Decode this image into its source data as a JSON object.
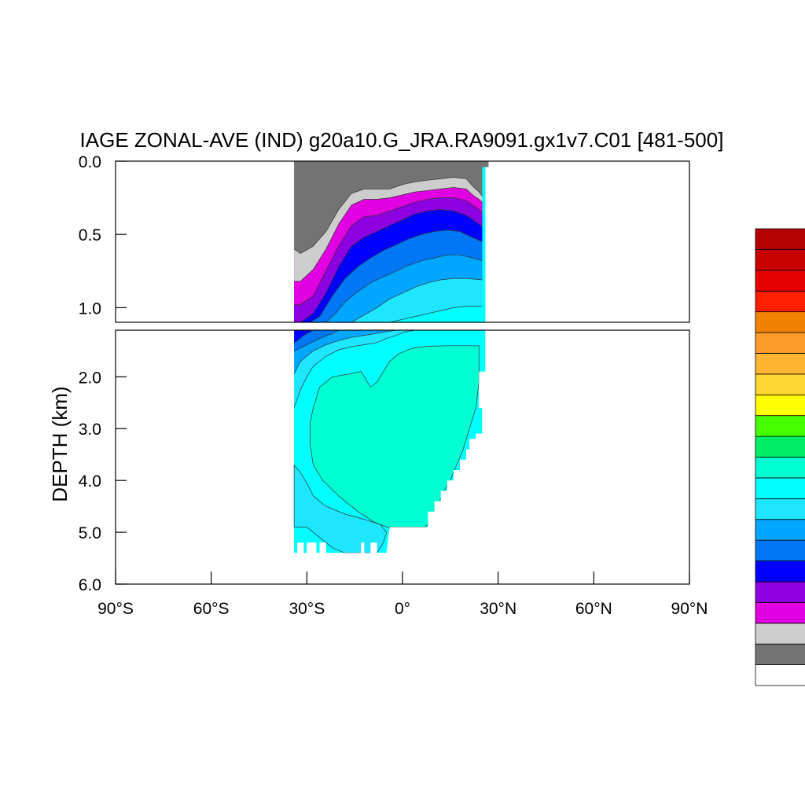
{
  "chart_data": {
    "type": "heatmap",
    "title": "IAGE ZONAL-AVE (IND) g20a10.G_JRA.RA9091.gx1v7.C01 [481-500]",
    "ylabel": "DEPTH (km)",
    "xlabel": "",
    "xlim": [
      -90,
      90
    ],
    "x_ticks": [
      {
        "value": -90,
        "label": "90°S"
      },
      {
        "value": -60,
        "label": "60°S"
      },
      {
        "value": -30,
        "label": "30°S"
      },
      {
        "value": 0,
        "label": "0°"
      },
      {
        "value": 30,
        "label": "30°N"
      },
      {
        "value": 60,
        "label": "60°N"
      },
      {
        "value": 90,
        "label": "90°N"
      }
    ],
    "top_panel": {
      "ylim": [
        0.0,
        1.1
      ],
      "y_ticks": [
        {
          "value": 0.0,
          "label": "0.0"
        },
        {
          "value": 0.5,
          "label": "0.5"
        },
        {
          "value": 1.0,
          "label": "1.0"
        }
      ]
    },
    "bottom_panel": {
      "ylim": [
        1.1,
        6.0
      ],
      "y_ticks": [
        {
          "value": 2.0,
          "label": "2.0"
        },
        {
          "value": 3.0,
          "label": "3.0"
        },
        {
          "value": 4.0,
          "label": "4.0"
        },
        {
          "value": 5.0,
          "label": "5.0"
        },
        {
          "value": 6.0,
          "label": "6.0"
        }
      ]
    },
    "colorbar": {
      "colors_bottom_to_top": [
        "#ffffff",
        "#737373",
        "#cdcdcd",
        "#e100e1",
        "#8c00e1",
        "#0000ff",
        "#0077f5",
        "#00a6ff",
        "#1ee6ff",
        "#00ffff",
        "#00ffd2",
        "#00ee64",
        "#46ff00",
        "#ffff00",
        "#ffd732",
        "#ffb432",
        "#ff9b28",
        "#f08200",
        "#ff1e00",
        "#e60000",
        "#c80000",
        "#b40000"
      ],
      "labels": []
    },
    "contour_levels": 9,
    "data_extent": {
      "lat_range": [
        -34,
        26
      ],
      "depth_top_km": 0.0,
      "max_depth_km": 5.4
    },
    "bands_top_panel": [
      {
        "color": "#737373",
        "lower": [
          [
            -34,
            0.6
          ],
          [
            -32,
            0.63
          ],
          [
            -28,
            0.58
          ],
          [
            -24,
            0.48
          ],
          [
            -20,
            0.33
          ],
          [
            -16,
            0.22
          ],
          [
            -12,
            0.19
          ],
          [
            -8,
            0.19
          ],
          [
            -4,
            0.19
          ],
          [
            0,
            0.16
          ],
          [
            4,
            0.14
          ],
          [
            8,
            0.13
          ],
          [
            12,
            0.12
          ],
          [
            16,
            0.11
          ],
          [
            20,
            0.12
          ],
          [
            22,
            0.17
          ],
          [
            24,
            0.21
          ],
          [
            25,
            0.24
          ]
        ]
      },
      {
        "color": "#cdcdcd",
        "lower": [
          [
            -34,
            0.82
          ],
          [
            -32,
            0.82
          ],
          [
            -28,
            0.74
          ],
          [
            -24,
            0.6
          ],
          [
            -20,
            0.43
          ],
          [
            -16,
            0.3
          ],
          [
            -12,
            0.26
          ],
          [
            -8,
            0.26
          ],
          [
            -4,
            0.25
          ],
          [
            0,
            0.23
          ],
          [
            4,
            0.21
          ],
          [
            8,
            0.2
          ],
          [
            12,
            0.19
          ],
          [
            16,
            0.18
          ],
          [
            20,
            0.19
          ],
          [
            22,
            0.23
          ],
          [
            24,
            0.26
          ],
          [
            25,
            0.28
          ]
        ]
      },
      {
        "color": "#e100e1",
        "lower": [
          [
            -34,
            0.98
          ],
          [
            -32,
            0.98
          ],
          [
            -28,
            0.92
          ],
          [
            -24,
            0.75
          ],
          [
            -20,
            0.58
          ],
          [
            -16,
            0.44
          ],
          [
            -12,
            0.38
          ],
          [
            -8,
            0.37
          ],
          [
            -4,
            0.34
          ],
          [
            0,
            0.31
          ],
          [
            4,
            0.28
          ],
          [
            8,
            0.26
          ],
          [
            12,
            0.25
          ],
          [
            16,
            0.25
          ],
          [
            20,
            0.27
          ],
          [
            22,
            0.3
          ],
          [
            24,
            0.33
          ],
          [
            25,
            0.35
          ]
        ]
      },
      {
        "color": "#8c00e1",
        "lower": [
          [
            -34,
            1.1
          ],
          [
            -32,
            1.1
          ],
          [
            -28,
            1.04
          ],
          [
            -24,
            0.9
          ],
          [
            -20,
            0.72
          ],
          [
            -16,
            0.58
          ],
          [
            -12,
            0.52
          ],
          [
            -8,
            0.48
          ],
          [
            -4,
            0.44
          ],
          [
            0,
            0.4
          ],
          [
            4,
            0.36
          ],
          [
            8,
            0.34
          ],
          [
            12,
            0.33
          ],
          [
            16,
            0.34
          ],
          [
            20,
            0.37
          ],
          [
            22,
            0.4
          ],
          [
            24,
            0.43
          ],
          [
            25,
            0.45
          ]
        ]
      },
      {
        "color": "#0000ff",
        "lower": [
          [
            -34,
            1.1
          ],
          [
            -29,
            1.1
          ],
          [
            -26,
            1.06
          ],
          [
            -22,
            0.92
          ],
          [
            -18,
            0.8
          ],
          [
            -14,
            0.72
          ],
          [
            -10,
            0.66
          ],
          [
            -6,
            0.61
          ],
          [
            -2,
            0.57
          ],
          [
            2,
            0.53
          ],
          [
            6,
            0.5
          ],
          [
            10,
            0.48
          ],
          [
            14,
            0.47
          ],
          [
            18,
            0.48
          ],
          [
            22,
            0.52
          ],
          [
            25,
            0.55
          ]
        ]
      },
      {
        "color": "#0077f5",
        "lower": [
          [
            -34,
            1.1
          ],
          [
            -24,
            1.1
          ],
          [
            -21,
            1.04
          ],
          [
            -18,
            0.96
          ],
          [
            -14,
            0.89
          ],
          [
            -10,
            0.83
          ],
          [
            -6,
            0.79
          ],
          [
            -2,
            0.75
          ],
          [
            2,
            0.71
          ],
          [
            6,
            0.68
          ],
          [
            10,
            0.66
          ],
          [
            14,
            0.64
          ],
          [
            18,
            0.64
          ],
          [
            22,
            0.66
          ],
          [
            25,
            0.68
          ]
        ]
      },
      {
        "color": "#00a6ff",
        "lower": [
          [
            -34,
            1.1
          ],
          [
            -16,
            1.1
          ],
          [
            -12,
            1.05
          ],
          [
            -8,
            1.0
          ],
          [
            -4,
            0.94
          ],
          [
            0,
            0.9
          ],
          [
            4,
            0.86
          ],
          [
            8,
            0.83
          ],
          [
            12,
            0.81
          ],
          [
            16,
            0.8
          ],
          [
            20,
            0.8
          ],
          [
            25,
            0.81
          ]
        ]
      },
      {
        "color": "#1ee6ff",
        "lower": [
          [
            -34,
            1.1
          ],
          [
            -4,
            1.1
          ],
          [
            0,
            1.08
          ],
          [
            4,
            1.06
          ],
          [
            8,
            1.04
          ],
          [
            12,
            1.02
          ],
          [
            16,
            1.0
          ],
          [
            20,
            0.99
          ],
          [
            25,
            0.99
          ]
        ]
      }
    ],
    "bands_bottom_panel": [
      {
        "color": "#0000ff",
        "lower": [
          [
            -34,
            1.35
          ],
          [
            -31,
            1.2
          ],
          [
            -28,
            1.1
          ]
        ]
      },
      {
        "color": "#0077f5",
        "lower": [
          [
            -34,
            1.5
          ],
          [
            -30,
            1.38
          ],
          [
            -26,
            1.26
          ],
          [
            -22,
            1.16
          ],
          [
            -20,
            1.1
          ]
        ]
      },
      {
        "color": "#00a6ff",
        "lower": [
          [
            -34,
            1.95
          ],
          [
            -32,
            1.7
          ],
          [
            -28,
            1.5
          ],
          [
            -24,
            1.38
          ],
          [
            -20,
            1.3
          ],
          [
            -16,
            1.24
          ],
          [
            -12,
            1.2
          ],
          [
            -8,
            1.16
          ],
          [
            -4,
            1.12
          ],
          [
            -2,
            1.1
          ]
        ]
      },
      {
        "color": "#1ee6ff",
        "lower": [
          [
            -34,
            2.6
          ],
          [
            -32,
            2.25
          ],
          [
            -30,
            2.0
          ],
          [
            -28,
            1.8
          ],
          [
            -24,
            1.6
          ],
          [
            -20,
            1.48
          ],
          [
            -16,
            1.42
          ],
          [
            -12,
            1.38
          ],
          [
            -8,
            1.34
          ],
          [
            -6,
            1.28
          ],
          [
            -4,
            1.24
          ],
          [
            -2,
            1.2
          ],
          [
            0,
            1.15
          ],
          [
            2,
            1.12
          ],
          [
            4,
            1.1
          ]
        ]
      }
    ],
    "deep_core": {
      "color": "#00ffd2",
      "outline": [
        [
          -28,
          2.6
        ],
        [
          -26,
          2.2
        ],
        [
          -22,
          2.0
        ],
        [
          -17,
          1.95
        ],
        [
          -13,
          1.9
        ],
        [
          -11,
          2.1
        ],
        [
          -10,
          2.2
        ],
        [
          -8,
          2.1
        ],
        [
          -6,
          1.9
        ],
        [
          -4,
          1.7
        ],
        [
          -1,
          1.55
        ],
        [
          3,
          1.45
        ],
        [
          8,
          1.41
        ],
        [
          14,
          1.4
        ],
        [
          20,
          1.4
        ],
        [
          24,
          1.4
        ],
        [
          24,
          2.1
        ],
        [
          23,
          2.6
        ],
        [
          21,
          3.0
        ],
        [
          19,
          3.4
        ],
        [
          17,
          3.7
        ],
        [
          15,
          4.0
        ],
        [
          13,
          4.2
        ],
        [
          11,
          4.5
        ],
        [
          9,
          4.8
        ],
        [
          7,
          4.9
        ],
        [
          0,
          4.9
        ],
        [
          -5,
          4.9
        ],
        [
          -9,
          4.8
        ],
        [
          -14,
          4.6
        ],
        [
          -20,
          4.3
        ],
        [
          -25,
          4.0
        ],
        [
          -28,
          3.7
        ],
        [
          -29,
          3.3
        ],
        [
          -29,
          2.9
        ]
      ]
    },
    "bottom_panel_cyan_region": {
      "color": "#00ffff"
    },
    "deep_light_blue_region": {
      "color": "#1ee6ff",
      "outline": [
        [
          -34,
          3.7
        ],
        [
          -32,
          3.85
        ],
        [
          -30,
          4.05
        ],
        [
          -28,
          4.3
        ],
        [
          -24,
          4.5
        ],
        [
          -18,
          4.65
        ],
        [
          -12,
          4.75
        ],
        [
          -7,
          4.85
        ],
        [
          -5,
          5.0
        ],
        [
          -6,
          5.2
        ],
        [
          -8,
          5.4
        ],
        [
          -14,
          5.4
        ],
        [
          -18,
          5.4
        ],
        [
          -22,
          5.3
        ],
        [
          -26,
          5.1
        ],
        [
          -30,
          4.9
        ],
        [
          -34,
          4.9
        ]
      ]
    }
  }
}
